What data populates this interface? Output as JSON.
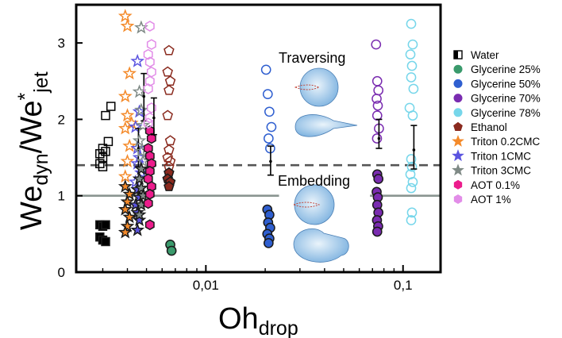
{
  "chart_data": {
    "type": "scatter",
    "xlabel": "Oh",
    "xlabel_sub": "drop",
    "ylabel_pre": "We",
    "ylabel_sub1": "dyn",
    "ylabel_mid": "/We",
    "ylabel_sup": "*",
    "ylabel_sub2": "jet",
    "x_scale": "log",
    "xlim": [
      0.0022,
      0.155
    ],
    "ylim": [
      0,
      3.5
    ],
    "x_ticks": [
      {
        "value": 0.01,
        "label": "0,01"
      },
      {
        "value": 0.1,
        "label": "0,1"
      }
    ],
    "y_ticks": [
      {
        "value": 0,
        "label": "0"
      },
      {
        "value": 1,
        "label": "1"
      },
      {
        "value": 2,
        "label": "2"
      },
      {
        "value": 3,
        "label": "3"
      }
    ],
    "reference_lines": [
      {
        "style": "solid",
        "y": 1.0,
        "color": "#8a9591",
        "segments": [
          [
            0.0022,
            0.0235
          ],
          [
            0.068,
            0.155
          ]
        ]
      },
      {
        "style": "dashed",
        "y": 1.4,
        "color": "#555555",
        "segments": [
          [
            0.0022,
            0.155
          ]
        ]
      }
    ],
    "legend_position": "right",
    "annotations": [
      {
        "text": "Traversing"
      },
      {
        "text": "Embedding"
      }
    ],
    "series": [
      {
        "name": "Water",
        "marker": "square",
        "color": "#000000",
        "open_points": [
          [
            0.0029,
            1.42
          ],
          [
            0.003,
            1.5
          ],
          [
            0.0031,
            1.58
          ],
          [
            0.003,
            1.62
          ],
          [
            0.0032,
            1.71
          ],
          [
            0.0031,
            2.05
          ],
          [
            0.0033,
            2.17
          ],
          [
            0.003,
            1.38
          ],
          [
            0.0029,
            1.55
          ]
        ],
        "filled_points": [
          [
            0.0029,
            0.62
          ],
          [
            0.003,
            0.6
          ],
          [
            0.0031,
            0.62
          ],
          [
            0.0029,
            0.46
          ],
          [
            0.003,
            0.42
          ],
          [
            0.0031,
            0.4
          ]
        ]
      },
      {
        "name": "Glycerine 25%",
        "marker": "circle",
        "color": "#3a9a6c",
        "open_points": [],
        "filled_points": [
          [
            0.0066,
            0.36
          ],
          [
            0.0067,
            0.28
          ]
        ]
      },
      {
        "name": "Glycerine 50%",
        "marker": "circle",
        "color": "#2f5fd0",
        "open_points": [
          [
            0.0202,
            2.65
          ],
          [
            0.0206,
            2.33
          ],
          [
            0.021,
            2.1
          ],
          [
            0.0215,
            1.9
          ],
          [
            0.0208,
            1.75
          ],
          [
            0.0212,
            1.62
          ]
        ],
        "filled_points": [
          [
            0.0205,
            0.82
          ],
          [
            0.021,
            0.75
          ],
          [
            0.0207,
            0.65
          ],
          [
            0.0212,
            0.58
          ],
          [
            0.0205,
            0.5
          ],
          [
            0.021,
            0.44
          ],
          [
            0.0208,
            0.38
          ]
        ],
        "error_bars": [
          {
            "x": 0.0213,
            "y": 1.45,
            "low": 1.27,
            "high": 1.65
          }
        ]
      },
      {
        "name": "Glycerine 70%",
        "marker": "circle",
        "color": "#7a2cb0",
        "open_points": [
          [
            0.073,
            2.98
          ],
          [
            0.074,
            2.5
          ],
          [
            0.075,
            2.38
          ],
          [
            0.0735,
            2.27
          ],
          [
            0.0745,
            2.18
          ],
          [
            0.074,
            2.05
          ],
          [
            0.0755,
            1.88
          ],
          [
            0.0738,
            1.75
          ]
        ],
        "filled_points": [
          [
            0.074,
            1.28
          ],
          [
            0.075,
            1.22
          ],
          [
            0.0735,
            1.05
          ],
          [
            0.0745,
            0.98
          ],
          [
            0.074,
            0.88
          ],
          [
            0.075,
            0.78
          ],
          [
            0.0738,
            0.68
          ],
          [
            0.0748,
            0.6
          ],
          [
            0.074,
            0.53
          ]
        ],
        "error_bars": [
          {
            "x": 0.0755,
            "y": 1.75,
            "low": 1.62,
            "high": 2.0
          }
        ]
      },
      {
        "name": "Glycerine 78%",
        "marker": "circle",
        "color": "#76d6ea",
        "open_points": [
          [
            0.11,
            3.25
          ],
          [
            0.112,
            2.98
          ],
          [
            0.109,
            2.85
          ],
          [
            0.111,
            2.7
          ],
          [
            0.11,
            2.55
          ],
          [
            0.113,
            2.4
          ],
          [
            0.108,
            2.15
          ],
          [
            0.112,
            2.05
          ],
          [
            0.11,
            1.48
          ],
          [
            0.111,
            1.38
          ],
          [
            0.109,
            1.28
          ],
          [
            0.112,
            1.18
          ],
          [
            0.11,
            1.1
          ],
          [
            0.111,
            0.78
          ],
          [
            0.11,
            0.68
          ]
        ],
        "filled_points": [],
        "error_bars": [
          {
            "x": 0.1135,
            "y": 1.6,
            "low": 1.35,
            "high": 1.92
          }
        ]
      },
      {
        "name": "Ethanol",
        "marker": "pentagon",
        "color": "#8a2a1e",
        "open_points": [
          [
            0.0065,
            2.9
          ],
          [
            0.0064,
            2.62
          ],
          [
            0.0066,
            2.5
          ],
          [
            0.0065,
            2.38
          ],
          [
            0.0064,
            2.05
          ],
          [
            0.0066,
            1.72
          ],
          [
            0.0065,
            1.6
          ],
          [
            0.0064,
            1.5
          ],
          [
            0.0066,
            1.45
          ],
          [
            0.0065,
            1.38
          ]
        ],
        "filled_points": [
          [
            0.0065,
            1.3
          ],
          [
            0.0064,
            1.22
          ],
          [
            0.0066,
            1.18
          ],
          [
            0.0065,
            1.12
          ]
        ]
      },
      {
        "name": "Triton 0.2CMC",
        "marker": "star",
        "color": "#f48a2a",
        "open_points": [
          [
            0.0039,
            3.35
          ],
          [
            0.004,
            3.22
          ],
          [
            0.0041,
            2.6
          ],
          [
            0.0039,
            2.3
          ],
          [
            0.004,
            2.05
          ],
          [
            0.0042,
            1.95
          ],
          [
            0.0039,
            1.88
          ],
          [
            0.0041,
            1.65
          ],
          [
            0.004,
            1.45
          ],
          [
            0.0039,
            1.25
          ]
        ],
        "filled_points": [
          [
            0.0039,
            1.12
          ],
          [
            0.0041,
            1.02
          ],
          [
            0.004,
            0.92
          ],
          [
            0.0039,
            0.82
          ],
          [
            0.0041,
            0.72
          ],
          [
            0.004,
            0.6
          ],
          [
            0.0039,
            0.52
          ]
        ]
      },
      {
        "name": "Triton 1CMC",
        "marker": "star",
        "color": "#5b54e0",
        "open_points": [
          [
            0.0045,
            2.76
          ],
          [
            0.0046,
            2.1
          ],
          [
            0.0044,
            1.9
          ],
          [
            0.0045,
            1.62
          ],
          [
            0.0046,
            1.5
          ],
          [
            0.0045,
            1.42
          ],
          [
            0.0047,
            1.3
          ],
          [
            0.0044,
            1.18
          ]
        ],
        "filled_points": [
          [
            0.0045,
            1.08
          ],
          [
            0.0046,
            0.98
          ],
          [
            0.0044,
            0.88
          ],
          [
            0.0045,
            0.78
          ],
          [
            0.0046,
            0.68
          ],
          [
            0.0045,
            0.55
          ]
        ],
        "error_bars": [
          {
            "x": 0.00455,
            "y": 1.62,
            "low": 1.38,
            "high": 1.88
          }
        ]
      },
      {
        "name": "Triton 3CMC",
        "marker": "star",
        "color": "#7f8a86",
        "open_points": [
          [
            0.0047,
            3.2
          ],
          [
            0.0046,
            2.36
          ],
          [
            0.0047,
            2.12
          ],
          [
            0.0048,
            1.92
          ],
          [
            0.0046,
            1.72
          ],
          [
            0.0047,
            1.58
          ],
          [
            0.0048,
            1.45
          ]
        ],
        "filled_points": [
          [
            0.0047,
            1.35
          ],
          [
            0.0046,
            1.22
          ],
          [
            0.0047,
            1.1
          ],
          [
            0.0048,
            1.0
          ],
          [
            0.0047,
            0.88
          ],
          [
            0.0046,
            0.75
          ]
        ],
        "error_bars": [
          {
            "x": 0.00485,
            "y": 2.3,
            "low": 1.98,
            "high": 2.6
          }
        ]
      },
      {
        "name": "AOT 0.1%",
        "marker": "hexagon",
        "color": "#ec1c8c",
        "open_points": [],
        "filled_points": [
          [
            0.0052,
            1.85
          ],
          [
            0.0053,
            1.75
          ],
          [
            0.0051,
            1.62
          ],
          [
            0.0052,
            1.52
          ],
          [
            0.0053,
            1.42
          ],
          [
            0.0052,
            1.32
          ],
          [
            0.0051,
            1.22
          ],
          [
            0.0053,
            1.12
          ],
          [
            0.0052,
            1.02
          ],
          [
            0.0051,
            0.9
          ],
          [
            0.0052,
            0.62
          ]
        ]
      },
      {
        "name": "AOT 1%",
        "marker": "hexagon",
        "color": "#e28de8",
        "open_points": [
          [
            0.0052,
            3.22
          ],
          [
            0.0053,
            2.98
          ],
          [
            0.0051,
            2.85
          ],
          [
            0.0052,
            2.75
          ],
          [
            0.0053,
            2.62
          ],
          [
            0.0052,
            2.5
          ],
          [
            0.0051,
            2.4
          ],
          [
            0.0053,
            2.15
          ],
          [
            0.0052,
            2.02
          ],
          [
            0.0051,
            1.95
          ]
        ],
        "filled_points": [],
        "error_bars": [
          {
            "x": 0.00545,
            "y": 2.02,
            "low": 1.8,
            "high": 2.28
          }
        ]
      }
    ]
  }
}
